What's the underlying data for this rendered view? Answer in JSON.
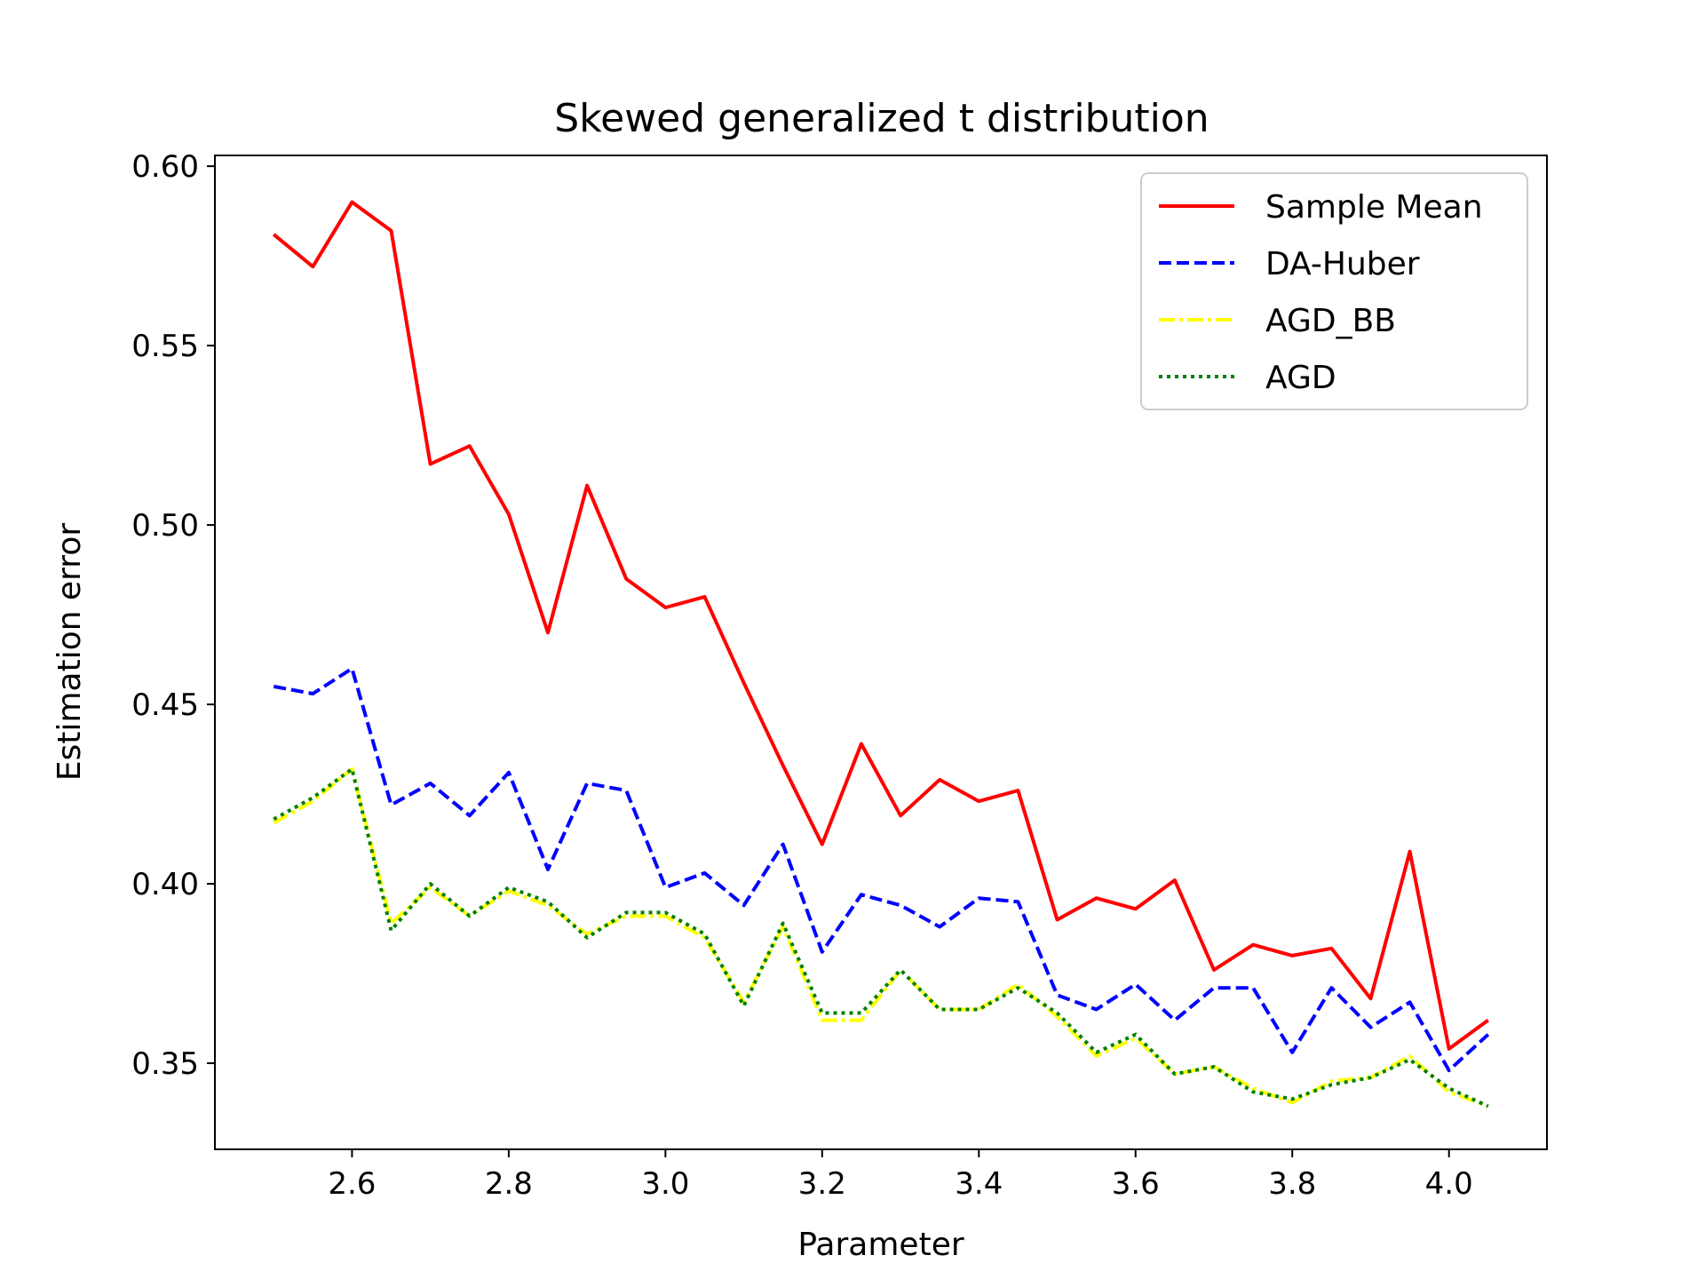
{
  "chart_data": {
    "type": "line",
    "title": "Skewed generalized t distribution",
    "xlabel": "Parameter",
    "ylabel": "Estimation error",
    "xlim": [
      2.425,
      4.125
    ],
    "ylim": [
      0.326,
      0.603
    ],
    "xticks": [
      2.6,
      2.8,
      3.0,
      3.2,
      3.4,
      3.6,
      3.8,
      4.0
    ],
    "xtick_labels": [
      "2.6",
      "2.8",
      "3.0",
      "3.2",
      "3.4",
      "3.6",
      "3.8",
      "4.0"
    ],
    "yticks": [
      0.35,
      0.4,
      0.45,
      0.5,
      0.55,
      0.6
    ],
    "ytick_labels": [
      "0.35",
      "0.40",
      "0.45",
      "0.50",
      "0.55",
      "0.60"
    ],
    "grid": false,
    "legend_position": "top-right",
    "x": [
      2.5,
      2.55,
      2.6,
      2.65,
      2.7,
      2.75,
      2.8,
      2.85,
      2.9,
      2.95,
      3.0,
      3.05,
      3.1,
      3.15,
      3.2,
      3.25,
      3.3,
      3.35,
      3.4,
      3.45,
      3.5,
      3.55,
      3.6,
      3.65,
      3.7,
      3.75,
      3.8,
      3.85,
      3.9,
      3.95,
      4.0,
      4.05
    ],
    "series": [
      {
        "name": "Sample Mean",
        "color": "#ff0000",
        "style": "solid",
        "values": [
          0.581,
          0.572,
          0.59,
          0.582,
          0.517,
          0.522,
          0.503,
          0.47,
          0.511,
          0.485,
          0.477,
          0.48,
          0.456,
          0.433,
          0.411,
          0.439,
          0.419,
          0.429,
          0.423,
          0.426,
          0.39,
          0.396,
          0.393,
          0.401,
          0.376,
          0.383,
          0.38,
          0.382,
          0.368,
          0.409,
          0.354,
          0.362
        ]
      },
      {
        "name": "DA-Huber",
        "color": "#0000ff",
        "style": "dashed",
        "values": [
          0.455,
          0.453,
          0.46,
          0.422,
          0.428,
          0.419,
          0.431,
          0.404,
          0.428,
          0.426,
          0.399,
          0.403,
          0.394,
          0.411,
          0.381,
          0.397,
          0.394,
          0.388,
          0.396,
          0.395,
          0.369,
          0.365,
          0.372,
          0.362,
          0.371,
          0.371,
          0.353,
          0.371,
          0.36,
          0.367,
          0.348,
          0.358
        ]
      },
      {
        "name": "AGD_BB",
        "color": "#ffff00",
        "style": "dashdot",
        "values": [
          0.417,
          0.423,
          0.432,
          0.389,
          0.399,
          0.391,
          0.398,
          0.394,
          0.386,
          0.391,
          0.391,
          0.385,
          0.367,
          0.388,
          0.362,
          0.362,
          0.376,
          0.365,
          0.365,
          0.372,
          0.363,
          0.352,
          0.357,
          0.347,
          0.349,
          0.343,
          0.339,
          0.345,
          0.346,
          0.352,
          0.342,
          0.338
        ]
      },
      {
        "name": "AGD",
        "color": "#008000",
        "style": "dotted",
        "values": [
          0.418,
          0.424,
          0.432,
          0.387,
          0.4,
          0.391,
          0.399,
          0.395,
          0.385,
          0.392,
          0.392,
          0.386,
          0.366,
          0.389,
          0.364,
          0.364,
          0.376,
          0.365,
          0.365,
          0.371,
          0.364,
          0.353,
          0.358,
          0.347,
          0.349,
          0.342,
          0.34,
          0.344,
          0.346,
          0.351,
          0.343,
          0.338
        ]
      }
    ]
  }
}
